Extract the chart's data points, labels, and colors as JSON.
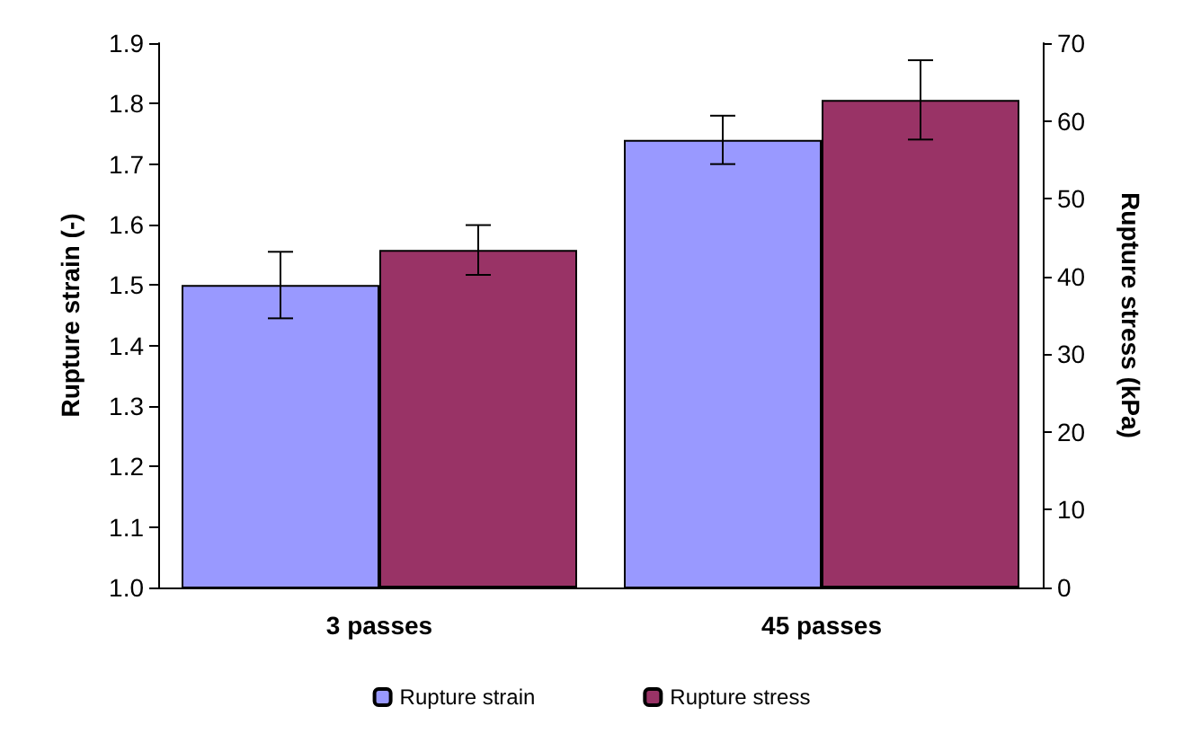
{
  "chart_data": {
    "type": "bar",
    "ylabel": "Rupture strain (-)",
    "y2label": "Rupture stress (kPa)",
    "categories": [
      "3 passes",
      "45 passes"
    ],
    "series": [
      {
        "name": "Rupture strain",
        "color": "#9999ff",
        "values": [
          1.5,
          1.74
        ],
        "errors": [
          0.055,
          0.04
        ]
      },
      {
        "name": "Rupture stress",
        "color": "#993366",
        "values": [
          43.4,
          62.7
        ],
        "errors": [
          3.2,
          5.1
        ],
        "axis": "y2"
      }
    ],
    "ylim": [
      1.0,
      1.9
    ],
    "yticks": [
      {
        "value": 1.0,
        "label": "1.0"
      },
      1.1,
      1.2,
      1.3,
      1.4,
      1.5,
      1.6,
      1.7,
      1.8,
      1.9
    ],
    "y2lim": [
      0,
      70
    ],
    "y2ticks": [
      0,
      10,
      20,
      30,
      40,
      50,
      60,
      70
    ],
    "grid": false,
    "legend": "bottom"
  }
}
